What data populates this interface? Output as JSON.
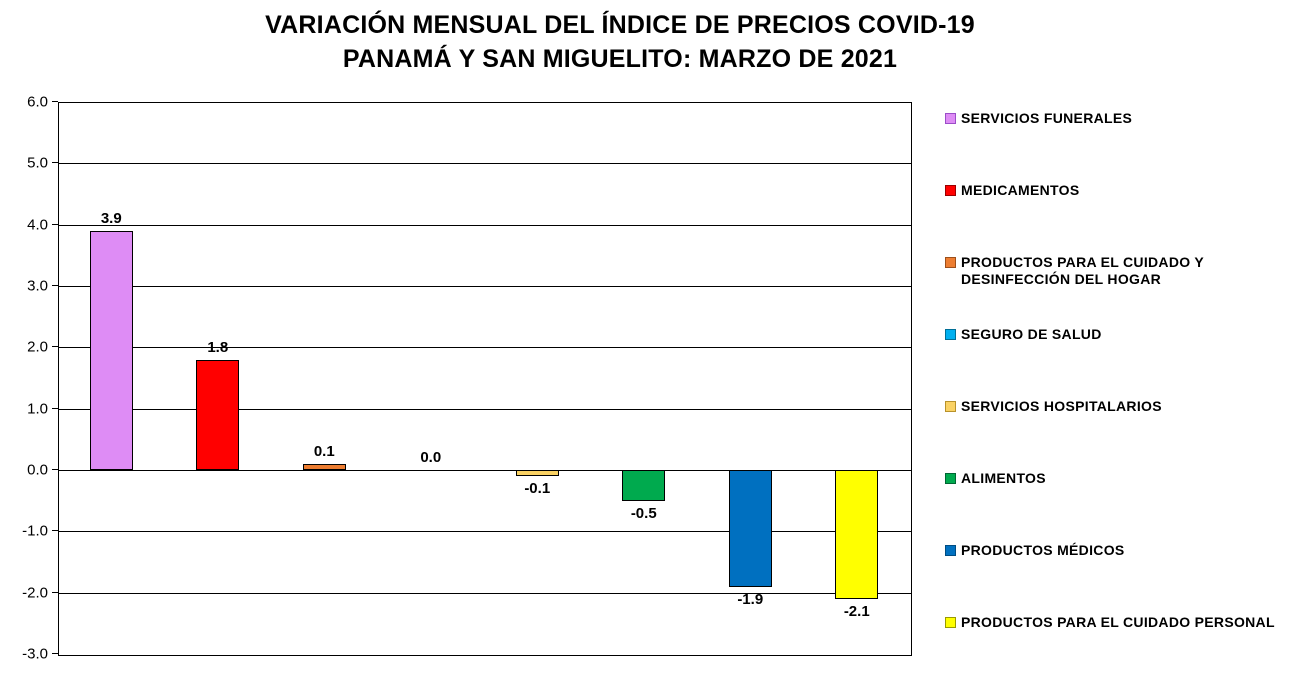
{
  "title": {
    "line1": "VARIACIÓN MENSUAL DEL ÍNDICE DE PRECIOS COVID-19",
    "line2": "PANAMÁ Y SAN MIGUELITO: MARZO DE 2021"
  },
  "chart_data": {
    "type": "bar",
    "title": "VARIACIÓN MENSUAL DEL ÍNDICE DE PRECIOS COVID-19 PANAMÁ Y SAN MIGUELITO: MARZO DE 2021",
    "categories": [
      "SERVICIOS FUNERALES",
      "MEDICAMENTOS",
      "PRODUCTOS PARA EL CUIDADO Y DESINFECCIÓN DEL HOGAR",
      "SEGURO DE SALUD",
      "SERVICIOS HOSPITALARIOS",
      "ALIMENTOS",
      "PRODUCTOS MÉDICOS",
      "PRODUCTOS PARA EL CUIDADO PERSONAL"
    ],
    "values": [
      3.9,
      1.8,
      0.1,
      0.0,
      -0.1,
      -0.5,
      -1.9,
      -2.1
    ],
    "value_labels": [
      "3.9",
      "1.8",
      "0.1",
      "0.0",
      "-0.1",
      "-0.5",
      "-1.9",
      "-2.1"
    ],
    "bar_colors": [
      "#DE8CF5",
      "#FF0000",
      "#ED7D31",
      "#00B0F0",
      "#FAD264",
      "#00AA4E",
      "#0070C0",
      "#FFFF00"
    ],
    "legend_key_border_colors": [
      "#9B4DC8",
      "#990000",
      "#9C4F1B",
      "#006E96",
      "#B8922B",
      "#006633",
      "#004C82",
      "#999900"
    ],
    "bar_border_color": "#000000",
    "xlabel": "",
    "ylabel": "",
    "ylim": [
      -3.0,
      6.0
    ],
    "ytick_step": 1.0,
    "ytick_labels": [
      "6.0",
      "5.0",
      "4.0",
      "3.0",
      "2.0",
      "1.0",
      "0.0",
      "-1.0",
      "-2.0",
      "-3.0"
    ],
    "grid": true,
    "legend_position": "right"
  }
}
